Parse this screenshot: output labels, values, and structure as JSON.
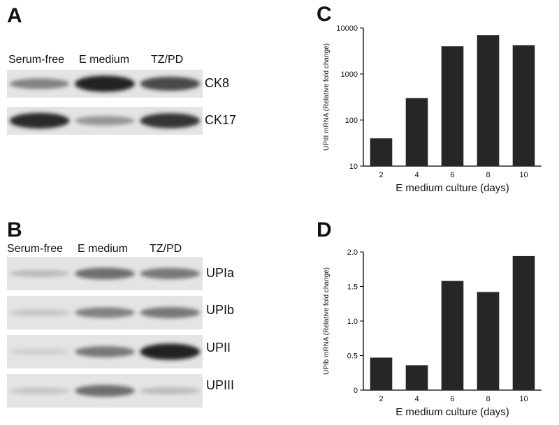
{
  "panels": {
    "a": {
      "letter": "A",
      "lanes": [
        "Serum-free",
        "E medium",
        "TZ/PD"
      ],
      "blots": [
        {
          "label": "CK8",
          "intensity": [
            0.45,
            0.95,
            0.75
          ]
        },
        {
          "label": "CK17",
          "intensity": [
            0.9,
            0.35,
            0.85
          ]
        }
      ]
    },
    "b": {
      "letter": "B",
      "lanes": [
        "Serum-free",
        "E medium",
        "TZ/PD"
      ],
      "blots": [
        {
          "label": "UPIa",
          "intensity": [
            0.15,
            0.55,
            0.5
          ]
        },
        {
          "label": "UPIb",
          "intensity": [
            0.1,
            0.45,
            0.5
          ]
        },
        {
          "label": "UPII",
          "intensity": [
            0.05,
            0.5,
            0.95
          ]
        },
        {
          "label": "UPIII",
          "intensity": [
            0.1,
            0.55,
            0.15
          ]
        }
      ]
    },
    "c": {
      "letter": "C"
    },
    "d": {
      "letter": "D"
    }
  },
  "chart_data": [
    {
      "panel": "C",
      "type": "bar",
      "categories": [
        "2",
        "4",
        "6",
        "8",
        "10"
      ],
      "values": [
        40,
        300,
        4000,
        7000,
        4200
      ],
      "xlabel": "E medium culture (days)",
      "ylabel": "UPIII mRNA (Relative fold change)",
      "yscale": "log",
      "ylim": [
        10,
        10000
      ],
      "yticks": [
        10,
        100,
        1000,
        10000
      ],
      "ytick_labels": [
        "10",
        "100",
        "1000",
        "10000"
      ],
      "grid": false,
      "bar_color": "#262626"
    },
    {
      "panel": "D",
      "type": "bar",
      "categories": [
        "2",
        "4",
        "6",
        "8",
        "10"
      ],
      "values": [
        0.47,
        0.36,
        1.58,
        1.42,
        1.94
      ],
      "xlabel": "E medium culture (days)",
      "ylabel": "UPIb mRNA (Relative fold change)",
      "yscale": "linear",
      "ylim": [
        0,
        2.0
      ],
      "yticks": [
        0,
        0.5,
        1.0,
        1.5,
        2.0
      ],
      "ytick_labels": [
        "0",
        "0.5",
        "1.0",
        "1.5",
        "2.0"
      ],
      "grid": false,
      "bar_color": "#262626"
    }
  ]
}
